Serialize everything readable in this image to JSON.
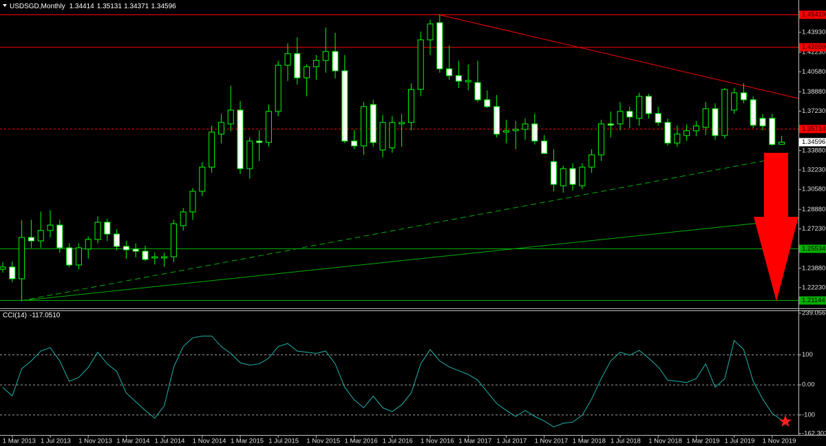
{
  "chart_data": {
    "type": "candlestick",
    "title": "USDSGD,Monthly",
    "categories": [
      null,
      "1 Mar 2013",
      null,
      null,
      null,
      "1 Jul 2013",
      null,
      null,
      null,
      "1 Nov 2013",
      null,
      null,
      null,
      "1 Mar 2014",
      null,
      null,
      null,
      "1 Jul 2014",
      null,
      null,
      null,
      "1 Nov 2014",
      null,
      null,
      null,
      "1 Mar 2015",
      null,
      null,
      null,
      "1 Jul 2015",
      null,
      null,
      null,
      "1 Nov 2015",
      null,
      null,
      null,
      "1 Mar 2016",
      null,
      null,
      null,
      "1 Jul 2016",
      null,
      null,
      null,
      "1 Nov 2016",
      null,
      null,
      null,
      "1 Mar 2017",
      null,
      null,
      null,
      "1 Jul 2017",
      null,
      null,
      null,
      "1 Nov 2017",
      null,
      null,
      null,
      "1 Mar 2018",
      null,
      null,
      null,
      "1 Jul 2018",
      null,
      null,
      null,
      "1 Nov 2018",
      null,
      null,
      null,
      "1 Mar 2019",
      null,
      null,
      null,
      "1 Jul 2019",
      null,
      null,
      null,
      "1 Nov 2019",
      null
    ],
    "open": [
      1.238,
      1.2399,
      1.2299,
      1.265,
      1.2621,
      1.2709,
      1.2755,
      1.2562,
      1.2416,
      1.2551,
      1.2633,
      1.2779,
      1.2679,
      1.2574,
      1.2551,
      1.2533,
      1.2475,
      1.2475,
      1.2486,
      1.275,
      1.2867,
      1.3042,
      1.3247,
      1.3528,
      1.3615,
      1.3732,
      1.3235,
      1.3469,
      1.3457,
      1.3721,
      1.4113,
      1.4212,
      1.4007,
      1.4101,
      1.4154,
      1.423,
      1.4066,
      1.3469,
      1.3428,
      1.3779,
      1.3393,
      1.3411,
      1.3615,
      1.3627,
      1.3908,
      1.4329,
      1.4475,
      1.4083,
      1.4025,
      1.3972,
      1.3966,
      1.382,
      1.3762,
      1.3545,
      1.3557,
      1.3569,
      1.3615,
      1.3469,
      1.3294,
      1.3089,
      1.3235,
      1.3089,
      1.3247,
      1.3352,
      1.3615,
      1.3615,
      1.3721,
      1.3662,
      1.3849,
      1.3703,
      1.3627,
      1.3452,
      1.3516,
      1.3557,
      1.3586,
      1.3744,
      1.3516,
      1.3732,
      1.3879,
      1.382,
      1.3662,
      1.3662,
      1.34414
    ],
    "high": [
      1.244,
      1.2445,
      1.2796,
      1.28,
      1.287,
      1.288,
      1.28,
      1.26,
      1.26,
      1.266,
      1.283,
      1.281,
      1.272,
      1.262,
      1.26,
      1.258,
      1.252,
      1.252,
      1.28,
      1.29,
      1.307,
      1.329,
      1.36,
      1.37,
      1.394,
      1.381,
      1.35,
      1.356,
      1.378,
      1.415,
      1.43,
      1.435,
      1.412,
      1.42,
      1.4434,
      1.439,
      1.42,
      1.356,
      1.38,
      1.382,
      1.369,
      1.368,
      1.37,
      1.396,
      1.44,
      1.45,
      1.4545,
      1.428,
      1.415,
      1.412,
      1.415,
      1.39,
      1.386,
      1.365,
      1.364,
      1.366,
      1.37,
      1.352,
      1.34,
      1.326,
      1.328,
      1.328,
      1.34,
      1.365,
      1.372,
      1.38,
      1.376,
      1.388,
      1.387,
      1.376,
      1.366,
      1.36,
      1.361,
      1.364,
      1.38,
      1.379,
      1.392,
      1.392,
      1.396,
      1.385,
      1.37,
      1.37,
      1.35131
    ],
    "low": [
      1.235,
      1.227,
      1.2112,
      1.256,
      1.256,
      1.265,
      1.252,
      1.24,
      1.238,
      1.247,
      1.26,
      1.262,
      1.254,
      1.247,
      1.248,
      1.245,
      1.242,
      1.24,
      1.244,
      1.271,
      1.28,
      1.3,
      1.32,
      1.345,
      1.355,
      1.319,
      1.315,
      1.33,
      1.342,
      1.368,
      1.398,
      1.395,
      1.385,
      1.399,
      1.405,
      1.4,
      1.345,
      1.34,
      1.335,
      1.342,
      1.333,
      1.337,
      1.342,
      1.356,
      1.385,
      1.42,
      1.405,
      1.399,
      1.392,
      1.39,
      1.38,
      1.375,
      1.35,
      1.345,
      1.34,
      1.348,
      1.344,
      1.336,
      1.304,
      1.303,
      1.305,
      1.306,
      1.32,
      1.33,
      1.35,
      1.356,
      1.358,
      1.36,
      1.366,
      1.36,
      1.343,
      1.342,
      1.347,
      1.351,
      1.352,
      1.348,
      1.349,
      1.37,
      1.379,
      1.358,
      1.356,
      1.343,
      1.34371
    ],
    "close": [
      1.2399,
      1.2299,
      1.265,
      1.2621,
      1.2709,
      1.2755,
      1.2562,
      1.2416,
      1.2562,
      1.2633,
      1.2779,
      1.2679,
      1.2574,
      1.2545,
      1.2533,
      1.2463,
      1.2486,
      1.2486,
      1.2767,
      1.2867,
      1.3042,
      1.3247,
      1.3545,
      1.3627,
      1.3732,
      1.3235,
      1.3469,
      1.3457,
      1.3721,
      1.4113,
      1.4212,
      1.4007,
      1.4101,
      1.4154,
      1.423,
      1.4066,
      1.3469,
      1.3428,
      1.3762,
      1.3457,
      1.3627,
      1.3627,
      1.3627,
      1.3908,
      1.4329,
      1.4464,
      1.4083,
      1.4025,
      1.3978,
      1.3984,
      1.382,
      1.3762,
      1.3528,
      1.3557,
      1.3569,
      1.3615,
      1.3469,
      1.3364,
      1.3101,
      1.3235,
      1.3101,
      1.3247,
      1.3352,
      1.3615,
      1.3604,
      1.3721,
      1.3674,
      1.3849,
      1.3703,
      1.3627,
      1.3452,
      1.3528,
      1.3557,
      1.3598,
      1.3744,
      1.3516,
      1.3908,
      1.3879,
      1.382,
      1.3604,
      1.3598,
      1.344,
      1.34596
    ],
    "up_color": "#000000",
    "down_color": "#ffffff",
    "edge_color": "#00ff00",
    "ylim": [
      1.2065,
      1.4656
    ],
    "yticks": [
      {
        "value": 1.4393,
        "label": "1.43930"
      },
      {
        "value": 1.4223,
        "label": "1.42230"
      },
      {
        "value": 1.4058,
        "label": "1.40580"
      },
      {
        "value": 1.3888,
        "label": "1.38880"
      },
      {
        "value": 1.3723,
        "label": "1.37230"
      },
      {
        "value": 1.3388,
        "label": "1.33880"
      },
      {
        "value": 1.3223,
        "label": "1.32230"
      },
      {
        "value": 1.3058,
        "label": "1.30580"
      },
      {
        "value": 1.2888,
        "label": "1.28880"
      },
      {
        "value": 1.2723,
        "label": "1.27230"
      },
      {
        "value": 1.2388,
        "label": "1.23880"
      },
      {
        "value": 1.2223,
        "label": "1.22230"
      }
    ],
    "hlines": [
      {
        "value": 1.45419,
        "color": "#ff0000",
        "dashed": false
      },
      {
        "value": 1.42659,
        "color": "#ff0000",
        "dashed": false
      },
      {
        "value": 1.35714,
        "color": "#ff0000",
        "dashed": true
      },
      {
        "value": 1.25534,
        "color": "#00b000",
        "dashed": false
      },
      {
        "value": 1.21144,
        "color": "#00b000",
        "dashed": false
      }
    ],
    "indicator": {
      "type": "line",
      "title": "CCI(14)",
      "current_label": "-117.0510",
      "color": "#20b2aa",
      "values": [
        -8,
        -37,
        54,
        80,
        113,
        124,
        80,
        12,
        25,
        58,
        109,
        70,
        45,
        -27,
        -56,
        -85,
        -111,
        -70,
        60,
        128,
        157,
        163,
        163,
        128,
        105,
        74,
        66,
        70,
        89,
        128,
        138,
        113,
        109,
        105,
        113,
        70,
        -8,
        -50,
        -76,
        -37,
        -76,
        -89,
        -66,
        -27,
        70,
        118,
        80,
        60,
        47,
        35,
        16,
        -23,
        -62,
        -85,
        -105,
        -85,
        -105,
        -120,
        -140,
        -128,
        -124,
        -101,
        -47,
        21,
        80,
        109,
        99,
        115,
        89,
        60,
        16,
        12,
        8,
        21,
        70,
        -8,
        21,
        148,
        118,
        12,
        -47,
        -95,
        -117.051
      ],
      "ylim": [
        -162.3034,
        239.0566
      ],
      "yticks": [
        239.0566,
        100,
        {
          "value": 0,
          "label": "0.00"
        },
        -100,
        -162.3034
      ]
    }
  }
}
